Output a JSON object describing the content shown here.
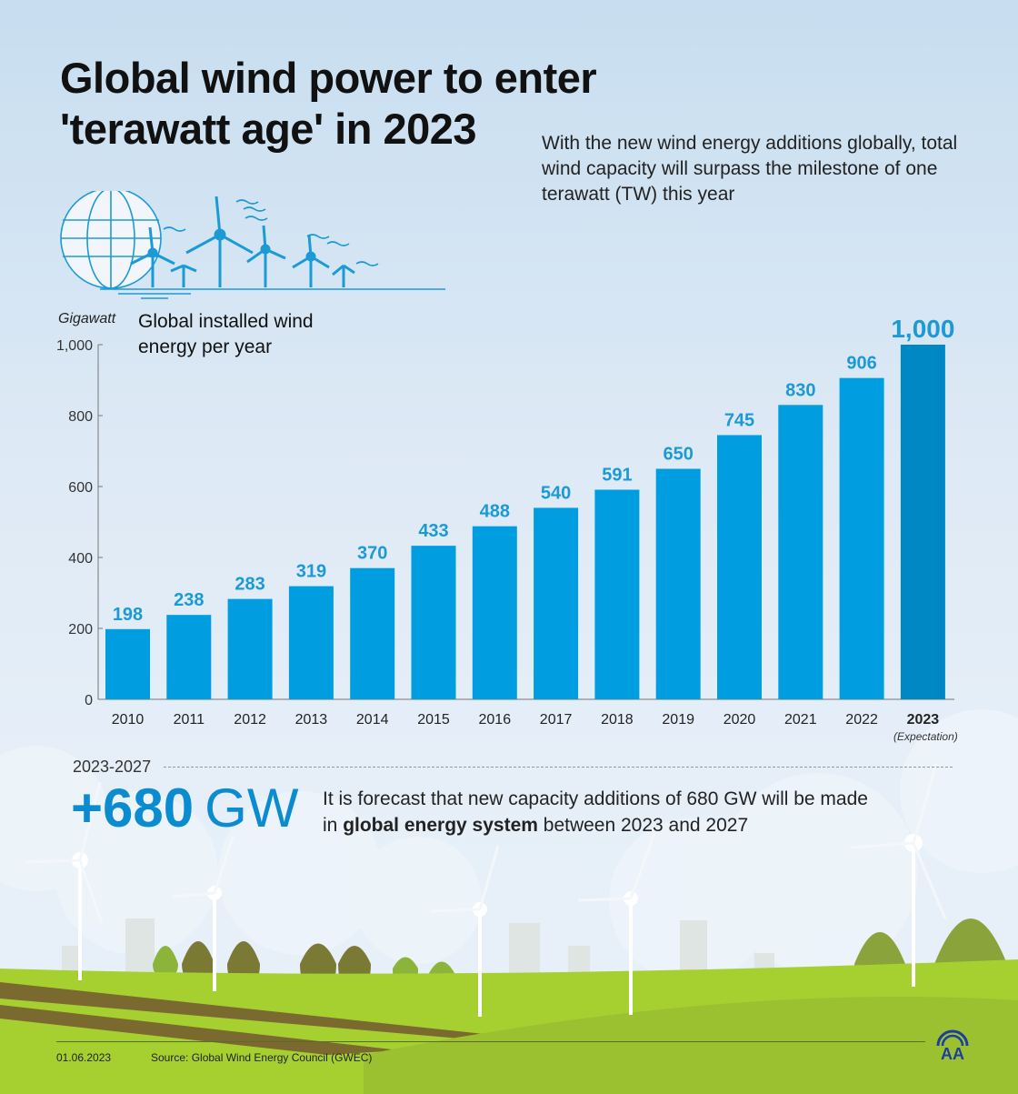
{
  "header": {
    "title_line1": "Global wind power to enter",
    "title_line2": "'terawatt age' in 2023",
    "subtitle": "With the new wind energy additions globally, total wind capacity will surpass the milestone of one terawatt (TW) this year"
  },
  "chart_data": {
    "type": "bar",
    "title": "Global installed wind energy per year",
    "ylabel": "Gigawatt",
    "xlabel": "",
    "categories": [
      "2010",
      "2011",
      "2012",
      "2013",
      "2014",
      "2015",
      "2016",
      "2017",
      "2018",
      "2019",
      "2020",
      "2021",
      "2022",
      "2023"
    ],
    "values": [
      198,
      238,
      283,
      319,
      370,
      433,
      488,
      540,
      591,
      650,
      745,
      830,
      906,
      1000
    ],
    "value_labels": [
      "198",
      "238",
      "283",
      "319",
      "370",
      "433",
      "488",
      "540",
      "591",
      "650",
      "745",
      "830",
      "906",
      "1,000"
    ],
    "highlight_index": 13,
    "highlight_note": "(Expectation)",
    "ylim": [
      0,
      1000
    ],
    "yticks": [
      0,
      200,
      400,
      600,
      800,
      1000
    ],
    "ytick_labels": [
      "0",
      "200",
      "400",
      "600",
      "800",
      "1,000"
    ],
    "grid": false,
    "colors": {
      "bar": "#009ee0",
      "highlight": "#0088c4",
      "label": "#1c9ad6"
    }
  },
  "forecast": {
    "range": "2023-2027",
    "value": "+680",
    "unit": "GW",
    "text_a": "It is forecast that new capacity additions of 680 GW will be made in ",
    "text_bold": "global energy system",
    "text_b": " between 2023 and 2027"
  },
  "footer": {
    "date": "01.06.2023",
    "source": "Source: Global Wind Energy Council (GWEC)",
    "logo": "AA"
  }
}
